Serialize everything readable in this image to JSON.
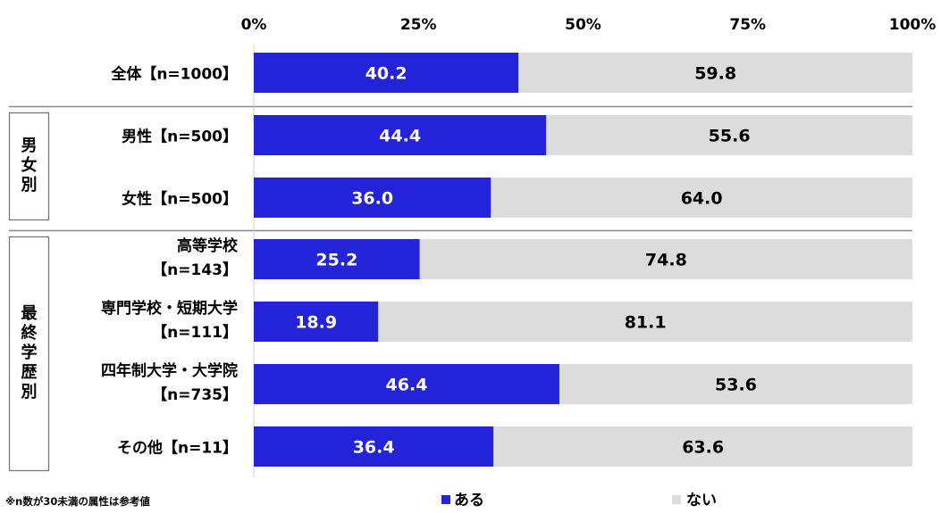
{
  "chart_data": {
    "type": "bar",
    "orientation": "horizontal",
    "stacked": true,
    "percent_stacked": true,
    "x_ticks": [
      "0%",
      "25%",
      "50%",
      "75%",
      "100%"
    ],
    "xlim": [
      0,
      100
    ],
    "groups": [
      {
        "label": "",
        "rows": [
          0
        ]
      },
      {
        "label": "男女別",
        "rows": [
          1,
          2
        ]
      },
      {
        "label": "最終学歴別",
        "rows": [
          3,
          4,
          5,
          6
        ]
      }
    ],
    "categories": [
      [
        "全体【n=1000】"
      ],
      [
        "男性【n=500】"
      ],
      [
        "女性【n=500】"
      ],
      [
        "高等学校",
        "【n=143】"
      ],
      [
        "専門学校・短期大学",
        "【n=111】"
      ],
      [
        "四年制大学・大学院",
        "【n=735】"
      ],
      [
        "その他【n=11】"
      ]
    ],
    "series": [
      {
        "name": "ある",
        "color": "#2323d9",
        "label_color": "#ffffff",
        "values": [
          40.2,
          44.4,
          36.0,
          25.2,
          18.9,
          46.4,
          36.4
        ],
        "labels": [
          "40.2",
          "44.4",
          "36.0",
          "25.2",
          "18.9",
          "46.4",
          "36.4"
        ]
      },
      {
        "name": "ない",
        "color": "#dcdcdc",
        "label_color": "#000000",
        "values": [
          59.8,
          55.6,
          64.0,
          74.8,
          81.1,
          53.6,
          63.6
        ],
        "labels": [
          "59.8",
          "55.6",
          "64.0",
          "74.8",
          "81.1",
          "53.6",
          "63.6"
        ]
      }
    ],
    "legend_placement": "bottom",
    "footnote": "※n数が30未満の属性は参考値"
  }
}
